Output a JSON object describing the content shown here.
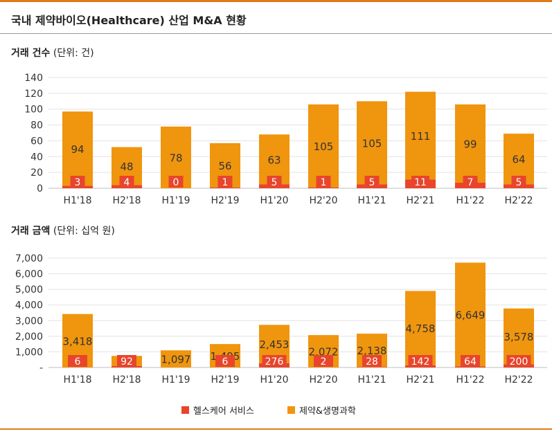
{
  "title": "국내 제약바이오(Healthcare) 산업 M&A 현황",
  "legend": {
    "health": "헬스케어 서비스",
    "pharma": "제약&생명과학"
  },
  "colors": {
    "health": "#e8452c",
    "pharma": "#f0950e",
    "accent": "#e07b1a"
  },
  "chart_data": [
    {
      "type": "bar",
      "stacked": true,
      "title_main": "거래 건수",
      "title_unit": "(단위: 건)",
      "categories": [
        "H1'18",
        "H2'18",
        "H1'19",
        "H2'19",
        "H1'20",
        "H2'20",
        "H1'21",
        "H2'21",
        "H1'22",
        "H2'22"
      ],
      "series": [
        {
          "name": "헬스케어 서비스",
          "values": [
            3,
            4,
            0,
            1,
            5,
            1,
            5,
            11,
            7,
            5
          ]
        },
        {
          "name": "제약&생명과학",
          "values": [
            94,
            48,
            78,
            56,
            63,
            105,
            105,
            111,
            99,
            64
          ]
        }
      ],
      "y_ticks": [
        "0",
        "20",
        "40",
        "60",
        "80",
        "100",
        "120",
        "140"
      ],
      "ylim": [
        0,
        140
      ],
      "grid": true
    },
    {
      "type": "bar",
      "stacked": true,
      "title_main": "거래 금액",
      "title_unit": "(단위: 십억 원)",
      "categories": [
        "H1'18",
        "H2'18",
        "H1'19",
        "H2'19",
        "H1'20",
        "H2'20",
        "H1'21",
        "H2'21",
        "H1'22",
        "H2'22"
      ],
      "series": [
        {
          "name": "헬스케어 서비스",
          "values": [
            6,
            92,
            null,
            6,
            276,
            2,
            28,
            142,
            64,
            200
          ]
        },
        {
          "name": "제약&생명과학",
          "values": [
            3418,
            649,
            1097,
            1495,
            2453,
            2072,
            2138,
            4758,
            6649,
            3578
          ]
        }
      ],
      "y_ticks": [
        "-",
        "1,000",
        "2,000",
        "3,000",
        "4,000",
        "5,000",
        "6,000",
        "7,000"
      ],
      "ylim": [
        0,
        7000
      ],
      "grid": true
    }
  ]
}
